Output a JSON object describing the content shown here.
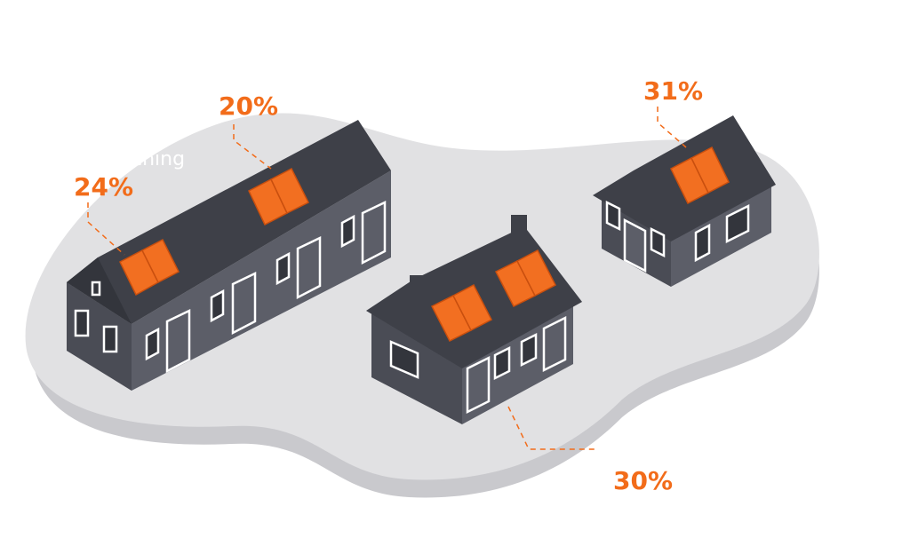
{
  "labels": [
    "24%",
    "20%",
    "31%",
    "30%"
  ],
  "caption": "ching"
}
